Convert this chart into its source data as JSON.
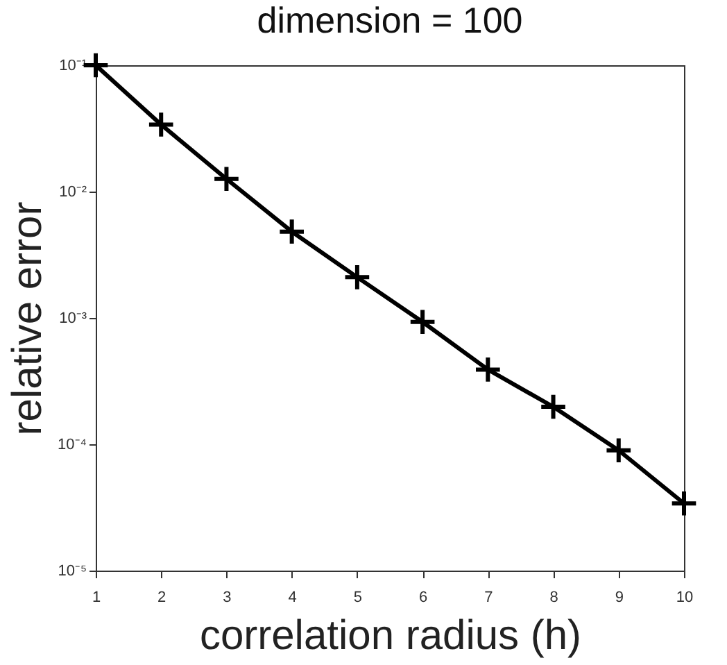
{
  "chart_data": {
    "type": "line",
    "title": "dimension = 100",
    "xlabel": "correlation radius (h)",
    "ylabel": "relative error",
    "x": [
      1,
      2,
      3,
      4,
      5,
      6,
      7,
      8,
      9,
      10
    ],
    "series": [
      {
        "color": "#000000",
        "values": [
          0.1,
          0.0339,
          0.0126,
          0.00482,
          0.0021,
          0.00093,
          0.00039,
          0.000198,
          8.95e-05,
          3.4e-05
        ]
      }
    ],
    "xlim": [
      1,
      10
    ],
    "xticks": [
      1,
      2,
      3,
      4,
      5,
      6,
      7,
      8,
      9,
      10
    ],
    "ylim": [
      1e-05,
      0.1
    ],
    "log": "y",
    "yticks": [
      {
        "value": 1e-05,
        "label": "10⁻⁵"
      },
      {
        "value": 0.0001,
        "label": "10⁻⁴"
      },
      {
        "value": 0.001,
        "label": "10⁻³"
      },
      {
        "value": 0.01,
        "label": "10⁻²"
      },
      {
        "value": 0.1,
        "label": "10⁻¹"
      }
    ],
    "grid": false,
    "marker": "cross",
    "line_style": "solid"
  }
}
